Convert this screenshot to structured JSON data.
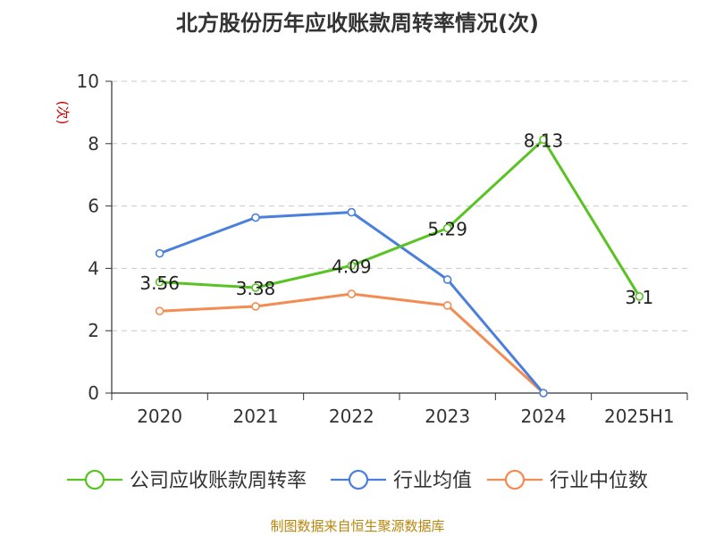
{
  "chart_data": {
    "type": "line",
    "title": "北方股份历年应收账款周转率情况(次)",
    "ylabel": "(次)",
    "xlabel": "",
    "categories": [
      "2020",
      "2021",
      "2022",
      "2023",
      "2024",
      "2025H1"
    ],
    "ylim": [
      0,
      10
    ],
    "yticks": [
      0,
      2,
      4,
      6,
      8,
      10
    ],
    "grid": true,
    "legend_position": "bottom",
    "series": [
      {
        "name": "公司应收账款周转率",
        "color": "#58c322",
        "values": [
          3.56,
          3.38,
          4.09,
          5.29,
          8.13,
          3.1
        ],
        "labels": [
          "3.56",
          "3.38",
          "4.09",
          "5.29",
          "8.13",
          "3.1"
        ]
      },
      {
        "name": "行业均值",
        "color": "#4a7fdb",
        "values": [
          4.48,
          5.63,
          5.8,
          3.64,
          0,
          null
        ]
      },
      {
        "name": "行业中位数",
        "color": "#f28c52",
        "values": [
          2.63,
          2.78,
          3.18,
          2.81,
          0,
          null
        ]
      }
    ],
    "source": "制图数据来自恒生聚源数据库"
  }
}
